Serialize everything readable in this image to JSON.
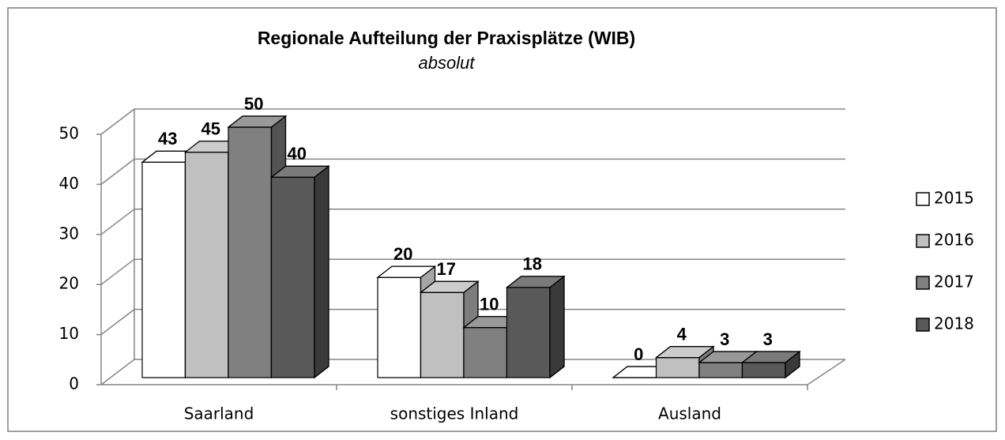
{
  "chart_data": {
    "type": "bar3d",
    "title": "Regionale Aufteilung der Praxisplätze (WIB)",
    "subtitle": "absolut",
    "categories": [
      "Saarland",
      "sonstiges Inland",
      "Ausland"
    ],
    "series": [
      {
        "name": "2015",
        "color": "#ffffff",
        "values": [
          43,
          20,
          0
        ]
      },
      {
        "name": "2016",
        "color": "#c0c0c0",
        "values": [
          45,
          17,
          4
        ]
      },
      {
        "name": "2017",
        "color": "#808080",
        "values": [
          50,
          10,
          3
        ]
      },
      {
        "name": "2018",
        "color": "#595959",
        "values": [
          40,
          18,
          3
        ]
      }
    ],
    "ylim": [
      0,
      50
    ],
    "yticks": [
      0,
      10,
      20,
      30,
      40,
      50
    ],
    "grid": true,
    "legend": "right"
  }
}
